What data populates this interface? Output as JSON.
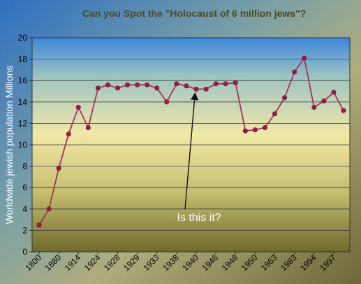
{
  "chart_data": {
    "type": "line",
    "title": "Can you Spot the \"Holocaust of 6 million jews\"?",
    "xlabel": "",
    "ylabel": "Worldwide jewish population Millions",
    "ylim": [
      0,
      20
    ],
    "yticks": [
      0,
      2,
      4,
      6,
      8,
      10,
      12,
      14,
      16,
      18,
      20
    ],
    "grid": true,
    "x_tick_labels": [
      "1800",
      "1880",
      "1914",
      "1924",
      "1928",
      "1929",
      "1933",
      "1938",
      "1940",
      "1946",
      "1948",
      "1950",
      "1963",
      "1983",
      "1994",
      "1997"
    ],
    "series": [
      {
        "values": [
          2.5,
          4.0,
          7.8,
          11.0,
          13.5,
          11.6,
          15.3,
          15.6,
          15.3,
          15.6,
          15.6,
          15.6,
          15.3,
          14.0,
          15.7,
          15.5,
          15.2,
          15.2,
          15.7,
          15.7,
          15.8,
          11.3,
          11.4,
          11.6,
          12.9,
          14.4,
          16.8,
          18.1,
          13.5,
          14.1,
          14.9,
          13.2
        ]
      }
    ],
    "annotation": {
      "text": "Is this it?",
      "arrow_target_index": 16
    },
    "colors": {
      "line": "#a5325a",
      "marker": "#9b1c46",
      "gridline": "#3a3a3a",
      "title_text": "#4b4b22",
      "annotation_text": "#ffffff"
    }
  }
}
